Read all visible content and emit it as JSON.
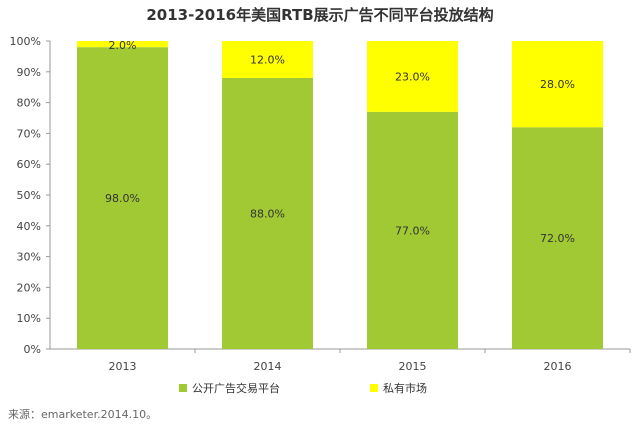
{
  "chart_data": {
    "type": "bar",
    "stacked": true,
    "title": "2013-2016年美国RTB展示广告不同平台投放结构",
    "categories": [
      "2013",
      "2014",
      "2015",
      "2016"
    ],
    "series": [
      {
        "name": "公开广告交易平台",
        "color": "#a1c934",
        "values": [
          98.0,
          88.0,
          77.0,
          72.0
        ],
        "labels": [
          "98.0%",
          "88.0%",
          "77.0%",
          "72.0%"
        ]
      },
      {
        "name": "私有市场",
        "color": "#ffff00",
        "values": [
          2.0,
          12.0,
          23.0,
          28.0
        ],
        "labels": [
          "2.0%",
          "12.0%",
          "23.0%",
          "28.0%"
        ]
      }
    ],
    "ylim": [
      0,
      100
    ],
    "yticks": [
      "0%",
      "10%",
      "20%",
      "30%",
      "40%",
      "50%",
      "60%",
      "70%",
      "80%",
      "90%",
      "100%"
    ],
    "grid": false,
    "legend_position": "bottom"
  },
  "source": "来源：emarketer.2014.10。"
}
